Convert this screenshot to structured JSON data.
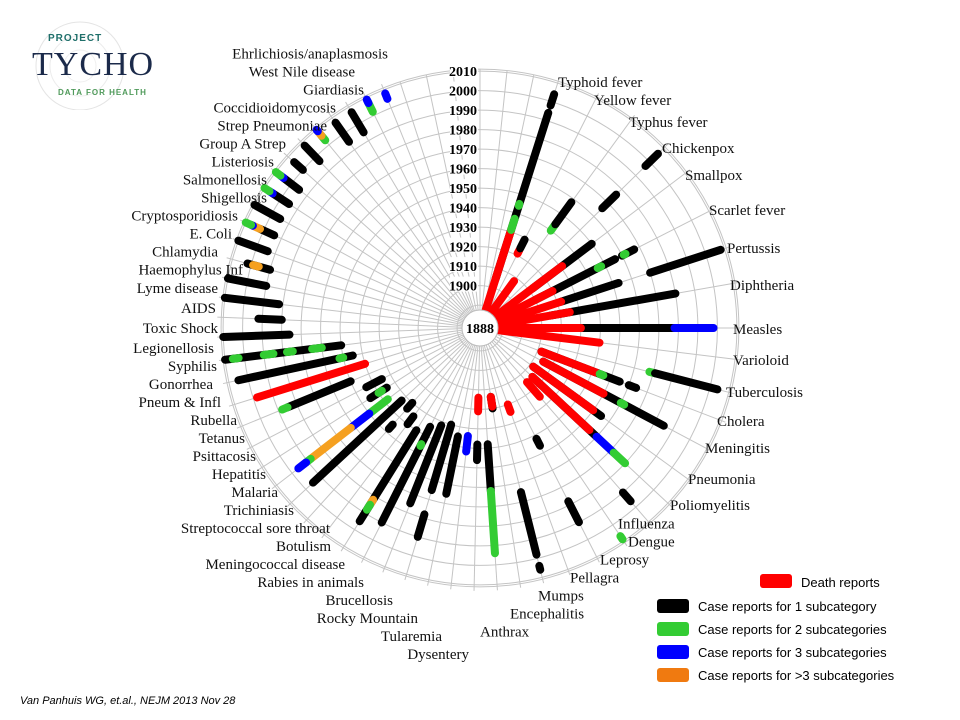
{
  "logo": {
    "project": "PROJECT",
    "name": "TYCHO",
    "tagline": "DATA FOR HEALTH"
  },
  "citation": "Van Panhuis WG, et.al.,  NEJM 2013 Nov 28",
  "legend": [
    {
      "key": "r",
      "label": "Death reports",
      "color": "#ff0000"
    },
    {
      "key": "k",
      "label": "Case reports for 1 subcategory",
      "color": "#000000"
    },
    {
      "key": "g",
      "label": "Case reports for 2 subcategories",
      "color": "#33cc33"
    },
    {
      "key": "b",
      "label": "Case reports for 3 subcategories",
      "color": "#0000ff"
    },
    {
      "key": "o",
      "label": "Case reports for >3 subcategories",
      "color": "#f5a020"
    }
  ],
  "chart_data": {
    "type": "radial-timeline",
    "center_year": "1888",
    "year_ticks": [
      "1900",
      "1910",
      "1920",
      "1930",
      "1940",
      "1950",
      "1960",
      "1970",
      "1980",
      "1990",
      "2000",
      "2010"
    ],
    "range": [
      1888,
      2010
    ],
    "diseases": [
      {
        "name": "Typhoid fever",
        "segments": [
          [
            1905,
            1994,
            "k"
          ],
          [
            1888,
            1931,
            "r"
          ],
          [
            1931,
            1937,
            "g"
          ],
          [
            1944,
            1945,
            "g"
          ],
          [
            1998,
            2004,
            "k"
          ]
        ]
      },
      {
        "name": "Yellow fever",
        "segments": [
          [
            1921,
            1923,
            "r"
          ],
          [
            1924,
            1929,
            "k"
          ]
        ]
      },
      {
        "name": "Typhus fever",
        "segments": [
          [
            1888,
            1908,
            "r"
          ],
          [
            1940,
            1944,
            "g"
          ],
          [
            1944,
            1958,
            "k"
          ]
        ]
      },
      {
        "name": "Chickenpox",
        "segments": [
          [
            1966,
            1976,
            "k"
          ],
          [
            1997,
            2006,
            "k"
          ]
        ]
      },
      {
        "name": "Smallpox",
        "segments": [
          [
            1912,
            1950,
            "k"
          ],
          [
            1888,
            1931,
            "r"
          ]
        ]
      },
      {
        "name": "Scarlet fever",
        "segments": [
          [
            1910,
            1956,
            "k"
          ],
          [
            1888,
            1920,
            "r"
          ],
          [
            1946,
            1948,
            "g"
          ],
          [
            1960,
            1967,
            "k"
          ],
          [
            1961,
            1962,
            "g"
          ]
        ]
      },
      {
        "name": "Pertussis",
        "segments": [
          [
            1922,
            1953,
            "k"
          ],
          [
            1888,
            1922,
            "r"
          ],
          [
            1970,
            2008,
            "k"
          ]
        ]
      },
      {
        "name": "Diphtheria",
        "segments": [
          [
            1915,
            1980,
            "k"
          ],
          [
            1888,
            1925,
            "r"
          ]
        ]
      },
      {
        "name": "Measles",
        "segments": [
          [
            1912,
            1978,
            "k"
          ],
          [
            1978,
            1998,
            "b"
          ],
          [
            1888,
            1930,
            "r"
          ]
        ]
      },
      {
        "name": "Varioloid",
        "segments": [
          [
            1888,
            1940,
            "r"
          ]
        ]
      },
      {
        "name": "Tuberculosis",
        "segments": [
          [
            1968,
            1971,
            "g"
          ],
          [
            1971,
            2004,
            "k"
          ]
        ]
      },
      {
        "name": "Cholera",
        "segments": [
          [
            1912,
            1955,
            "k"
          ],
          [
            1912,
            1942,
            "r"
          ],
          [
            1944,
            1946,
            "g"
          ],
          [
            1960,
            1964,
            "k"
          ]
        ]
      },
      {
        "name": "Meningitis",
        "segments": [
          [
            1915,
            1985,
            "k"
          ],
          [
            1915,
            1950,
            "r"
          ],
          [
            1960,
            1962,
            "g"
          ]
        ]
      },
      {
        "name": "Pneumonia",
        "segments": [
          [
            1912,
            1955,
            "k"
          ],
          [
            1912,
            1950,
            "r"
          ]
        ]
      },
      {
        "name": "Poliomyelitis",
        "segments": [
          [
            1915,
            1960,
            "k"
          ],
          [
            1915,
            1955,
            "r"
          ],
          [
            1960,
            1972,
            "b"
          ],
          [
            1972,
            1980,
            "g"
          ]
        ]
      },
      {
        "name": "Influenza",
        "segments": [
          [
            1915,
            1925,
            "r"
          ],
          [
            1990,
            1996,
            "k"
          ]
        ]
      },
      {
        "name": "Dengue",
        "segments": [
          [
            2007,
            2009,
            "g"
          ]
        ]
      },
      {
        "name": "Leprosy",
        "segments": [
          [
            1942,
            1946,
            "k"
          ],
          [
            1978,
            1990,
            "k"
          ]
        ]
      },
      {
        "name": "Pellagra",
        "segments": [
          [
            1920,
            1924,
            "r"
          ]
        ]
      },
      {
        "name": "Mumps",
        "segments": [
          [
            1965,
            1998,
            "k"
          ],
          [
            2004,
            2006,
            "k"
          ]
        ]
      },
      {
        "name": "Encephalitis",
        "segments": [
          [
            1914,
            1920,
            "k"
          ],
          [
            1914,
            1919,
            "r"
          ]
        ]
      },
      {
        "name": "Anthrax",
        "segments": [
          [
            1938,
            1962,
            "k"
          ],
          [
            1962,
            1994,
            "g"
          ]
        ]
      },
      {
        "name": "Dysentery",
        "segments": [
          [
            1914,
            1921,
            "r"
          ],
          [
            1938,
            1946,
            "k"
          ]
        ]
      },
      {
        "name": "Tularemia",
        "segments": [
          [
            1934,
            1942,
            "b"
          ]
        ]
      },
      {
        "name": "Rocky Mountain",
        "segments": [
          [
            1935,
            1965,
            "k"
          ]
        ]
      },
      {
        "name": "Brucellosis",
        "segments": [
          [
            1930,
            1965,
            "k"
          ],
          [
            1978,
            1990,
            "k"
          ]
        ]
      },
      {
        "name": "Rabies in animals",
        "segments": [
          [
            1932,
            1975,
            "k"
          ]
        ]
      },
      {
        "name": "Meningococcal disease",
        "segments": [
          [
            1935,
            1990,
            "k"
          ],
          [
            1945,
            1946,
            "g"
          ]
        ]
      },
      {
        "name": "Botulism",
        "segments": [
          [
            1940,
            1995,
            "k"
          ],
          [
            1982,
            1985,
            "o"
          ],
          [
            1985,
            1988,
            "g"
          ]
        ]
      },
      {
        "name": "Streptococcal sore throat",
        "segments": [
          [
            1935,
            1940,
            "k"
          ]
        ]
      },
      {
        "name": "Trichiniasis",
        "segments": [
          [
            1930,
            1934,
            "k"
          ],
          [
            1945,
            1948,
            "k"
          ]
        ]
      },
      {
        "name": "Malaria",
        "segments": [
          [
            1933,
            1995,
            "k"
          ]
        ]
      },
      {
        "name": "Hepatitis",
        "segments": [
          [
            1938,
            1950,
            "g"
          ],
          [
            1950,
            1962,
            "b"
          ],
          [
            1962,
            1988,
            "o"
          ],
          [
            1988,
            1991,
            "g"
          ],
          [
            1991,
            1996,
            "b"
          ]
        ]
      },
      {
        "name": "Psittacosis",
        "segments": [
          [
            1935,
            1945,
            "k"
          ],
          [
            1938,
            1940,
            "g"
          ]
        ]
      },
      {
        "name": "Tetanus",
        "segments": [
          [
            1935,
            1944,
            "k"
          ]
        ]
      },
      {
        "name": "Rubella",
        "segments": [
          [
            1950,
            1985,
            "k"
          ],
          [
            1985,
            1988,
            "g"
          ]
        ]
      },
      {
        "name": "Pneum & Infl",
        "segments": [
          [
            1940,
            1998,
            "r"
          ]
        ]
      },
      {
        "name": "Gonorrhea",
        "segments": [
          [
            1945,
            2005,
            "k"
          ],
          [
            1950,
            1952,
            "g"
          ]
        ]
      },
      {
        "name": "Syphilis",
        "segments": [
          [
            1950,
            2010,
            "k"
          ],
          [
            1960,
            1965,
            "g"
          ],
          [
            1975,
            1978,
            "g"
          ],
          [
            1985,
            1990,
            "g"
          ],
          [
            2003,
            2006,
            "g"
          ]
        ]
      },
      {
        "name": "Legionellosis",
        "segments": [
          [
            1976,
            2010,
            "k"
          ]
        ]
      },
      {
        "name": "Toxic Shock",
        "segments": [
          [
            1980,
            1992,
            "k"
          ]
        ]
      },
      {
        "name": "AIDS",
        "segments": [
          [
            1982,
            2010,
            "k"
          ]
        ]
      },
      {
        "name": "Lyme disease",
        "segments": [
          [
            1990,
            2010,
            "k"
          ]
        ]
      },
      {
        "name": "Haemophylus Inf",
        "segments": [
          [
            1990,
            2002,
            "k"
          ],
          [
            1996,
            1999,
            "o"
          ]
        ]
      },
      {
        "name": "Chlamydia",
        "segments": [
          [
            1994,
            2010,
            "k"
          ]
        ]
      },
      {
        "name": "E. Coli",
        "segments": [
          [
            1994,
            2002,
            "k"
          ],
          [
            2002,
            2006,
            "o"
          ],
          [
            2006,
            2007,
            "b"
          ],
          [
            2007,
            2010,
            "g"
          ]
        ]
      },
      {
        "name": "Cryptosporidiosis",
        "segments": [
          [
            1995,
            2010,
            "k"
          ]
        ]
      },
      {
        "name": "Shigellosis",
        "segments": [
          [
            1995,
            2005,
            "k"
          ],
          [
            2005,
            2007,
            "b"
          ],
          [
            2007,
            2010,
            "g"
          ]
        ]
      },
      {
        "name": "Salmonellosis",
        "segments": [
          [
            1995,
            2005,
            "k"
          ],
          [
            2005,
            2007,
            "b"
          ],
          [
            2007,
            2010,
            "g"
          ]
        ]
      },
      {
        "name": "Listeriosis",
        "segments": [
          [
            2000,
            2006,
            "k"
          ]
        ]
      },
      {
        "name": "Group A Strep",
        "segments": [
          [
            1997,
            2008,
            "k"
          ]
        ]
      },
      {
        "name": "Strep Pneumoniae",
        "segments": [
          [
            2003,
            2006,
            "g"
          ],
          [
            2006,
            2009,
            "o"
          ],
          [
            2009,
            2010,
            "b"
          ]
        ]
      },
      {
        "name": "Coccidioidomycosis",
        "segments": [
          [
            1995,
            2007,
            "k"
          ]
        ]
      },
      {
        "name": "Giardiasis",
        "segments": [
          [
            1995,
            2007,
            "k"
          ]
        ]
      },
      {
        "name": "West Nile disease",
        "segments": [
          [
            2002,
            2008,
            "g"
          ],
          [
            2007,
            2009,
            "b"
          ]
        ]
      },
      {
        "name": "Ehrlichiosis/anaplasmosis",
        "segments": [
          [
            2005,
            2008,
            "b"
          ]
        ]
      }
    ]
  }
}
